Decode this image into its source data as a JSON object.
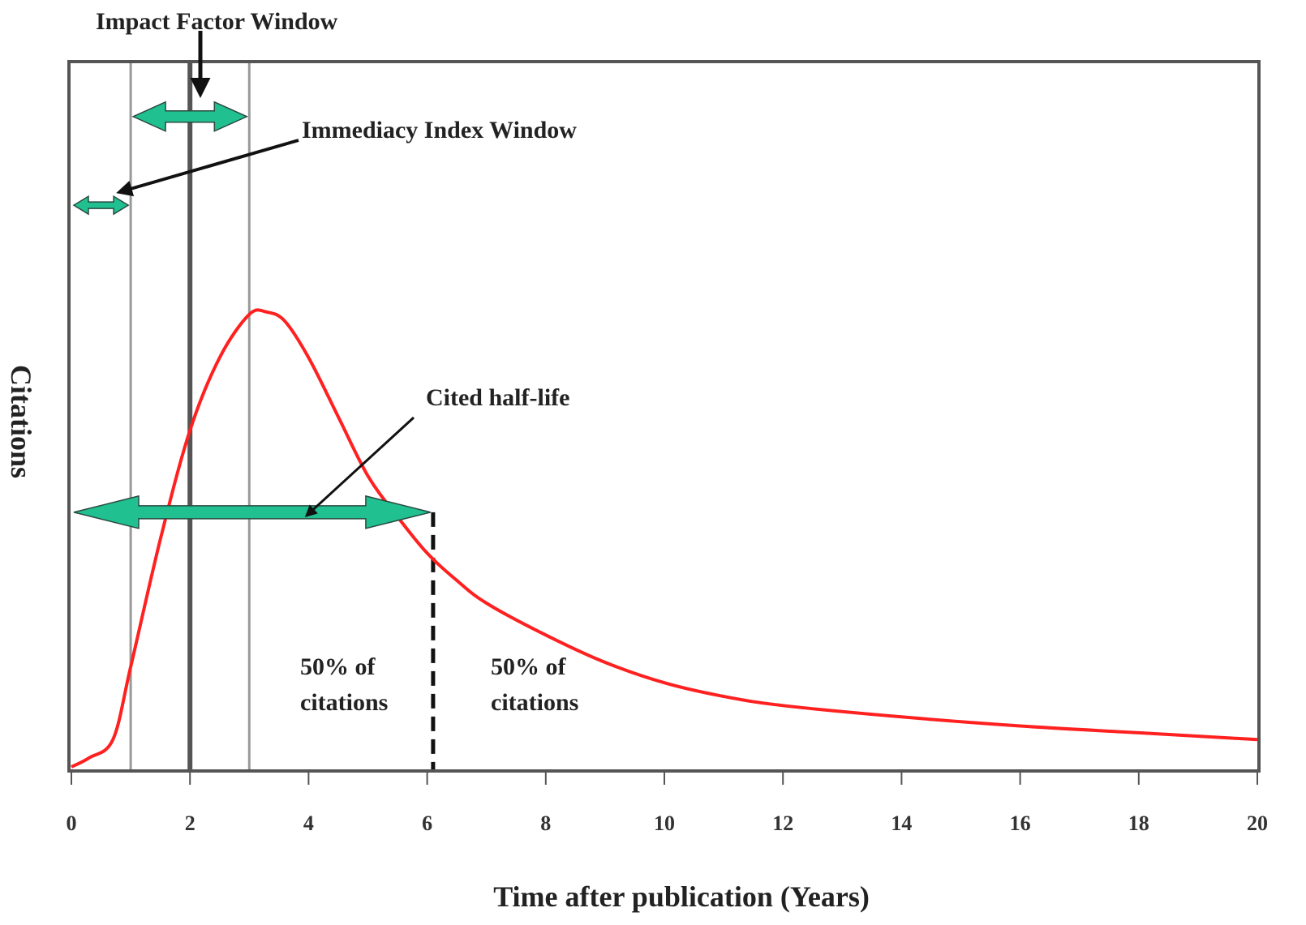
{
  "chart_data": {
    "type": "line",
    "title": "",
    "xlabel": "Time after publication (Years)",
    "ylabel": "Citations",
    "xlim": [
      0,
      20
    ],
    "ylim": [
      0,
      1
    ],
    "x_ticks": [
      0,
      2,
      4,
      6,
      8,
      10,
      12,
      14,
      16,
      18,
      20
    ],
    "x_tick_labels": [
      "0",
      "2",
      "4",
      "6",
      "8",
      "10",
      "12",
      "14",
      "16",
      "18",
      "20"
    ],
    "y_ticks_shown": false,
    "grid": false,
    "legend": "none",
    "series": [
      {
        "color": "#ff2020",
        "x": [
          0,
          0.3,
          0.7,
          1.0,
          1.5,
          2.0,
          2.5,
          3.0,
          3.3,
          3.6,
          4.0,
          4.5,
          5.0,
          5.5,
          6.0,
          6.5,
          7.0,
          8.0,
          9.0,
          10.0,
          11.0,
          12.0,
          14.0,
          16.0,
          18.0,
          20.0
        ],
        "y": [
          0,
          0.02,
          0.06,
          0.22,
          0.5,
          0.74,
          0.9,
          0.995,
          1.0,
          0.98,
          0.9,
          0.77,
          0.64,
          0.55,
          0.47,
          0.41,
          0.36,
          0.29,
          0.23,
          0.185,
          0.155,
          0.135,
          0.11,
          0.09,
          0.075,
          0.06
        ]
      }
    ],
    "vertical_lines": [
      {
        "x": 1,
        "style": "thin",
        "color": "#999999"
      },
      {
        "x": 2,
        "style": "thick",
        "color": "#555555"
      },
      {
        "x": 3,
        "style": "thin",
        "color": "#999999"
      },
      {
        "x": 6.1,
        "style": "dashed",
        "color": "#111111",
        "y_top": 0.56
      }
    ],
    "arrow_color": "#20c090",
    "windows": [
      {
        "id": "immediacy",
        "x_start": 0,
        "x_end": 1,
        "y": 1.235
      },
      {
        "id": "impact",
        "x_start": 1,
        "x_end": 3,
        "y": 1.43
      },
      {
        "id": "halflife",
        "x_start": 0,
        "x_end": 6.1,
        "y": 0.56
      }
    ],
    "annotations": {
      "impact_factor": "Impact Factor Window",
      "immediacy_index": "Immediacy Index Window",
      "cited_half_life": "Cited half-life",
      "fifty_left_line1": "50% of",
      "fifty_left_line2": "citations",
      "fifty_right_line1": "50% of",
      "fifty_right_line2": "citations"
    }
  }
}
